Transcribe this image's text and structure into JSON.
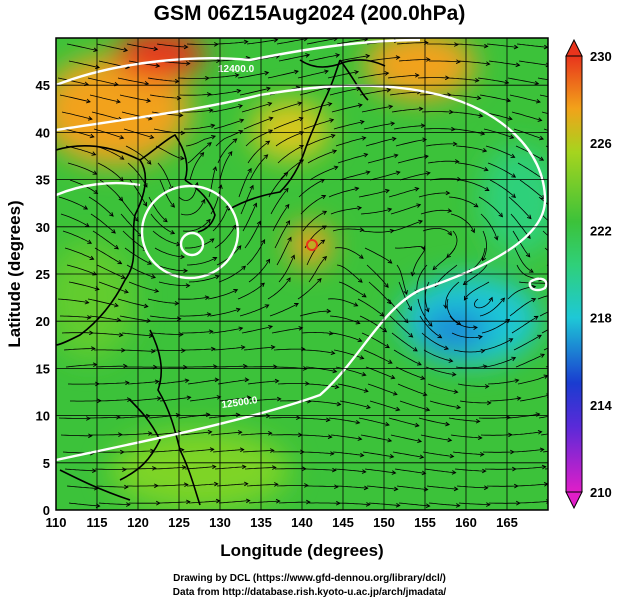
{
  "title": "GSM 06Z15Aug2024 (200.0hPa)",
  "map": {
    "xlabel": "Longitude (degrees)",
    "ylabel": "Latitude  (degrees)",
    "lon_range": [
      110,
      170
    ],
    "lat_range": [
      0,
      50
    ],
    "x_ticks": [
      "110",
      "115",
      "120",
      "125",
      "130",
      "135",
      "140",
      "145",
      "150",
      "155",
      "160",
      "165"
    ],
    "y_ticks": [
      "0",
      "5",
      "10",
      "15",
      "20",
      "25",
      "30",
      "35",
      "40",
      "45"
    ],
    "grid": true,
    "contour_labels": [
      "12400.0",
      "12500.0"
    ],
    "features": [
      "streamlines",
      "temperature-shading",
      "geopotential-contours",
      "coastlines"
    ]
  },
  "colorbar": {
    "min": 210,
    "max": 230,
    "ticks": [
      "230",
      "226",
      "222",
      "218",
      "214",
      "210"
    ]
  },
  "footer": {
    "line1": "Drawing by DCL (https://www.gfd-dennou.org/library/dcl/)",
    "line2": "Data from http://database.rish.kyoto-u.ac.jp/arch/jmadata/"
  },
  "colors": {
    "warm": "#e8341c",
    "orange": "#f2a21a",
    "green": "#3cc23a",
    "cyan": "#1ec8d6",
    "blue": "#1a3cd0",
    "magenta": "#e01ec8"
  }
}
